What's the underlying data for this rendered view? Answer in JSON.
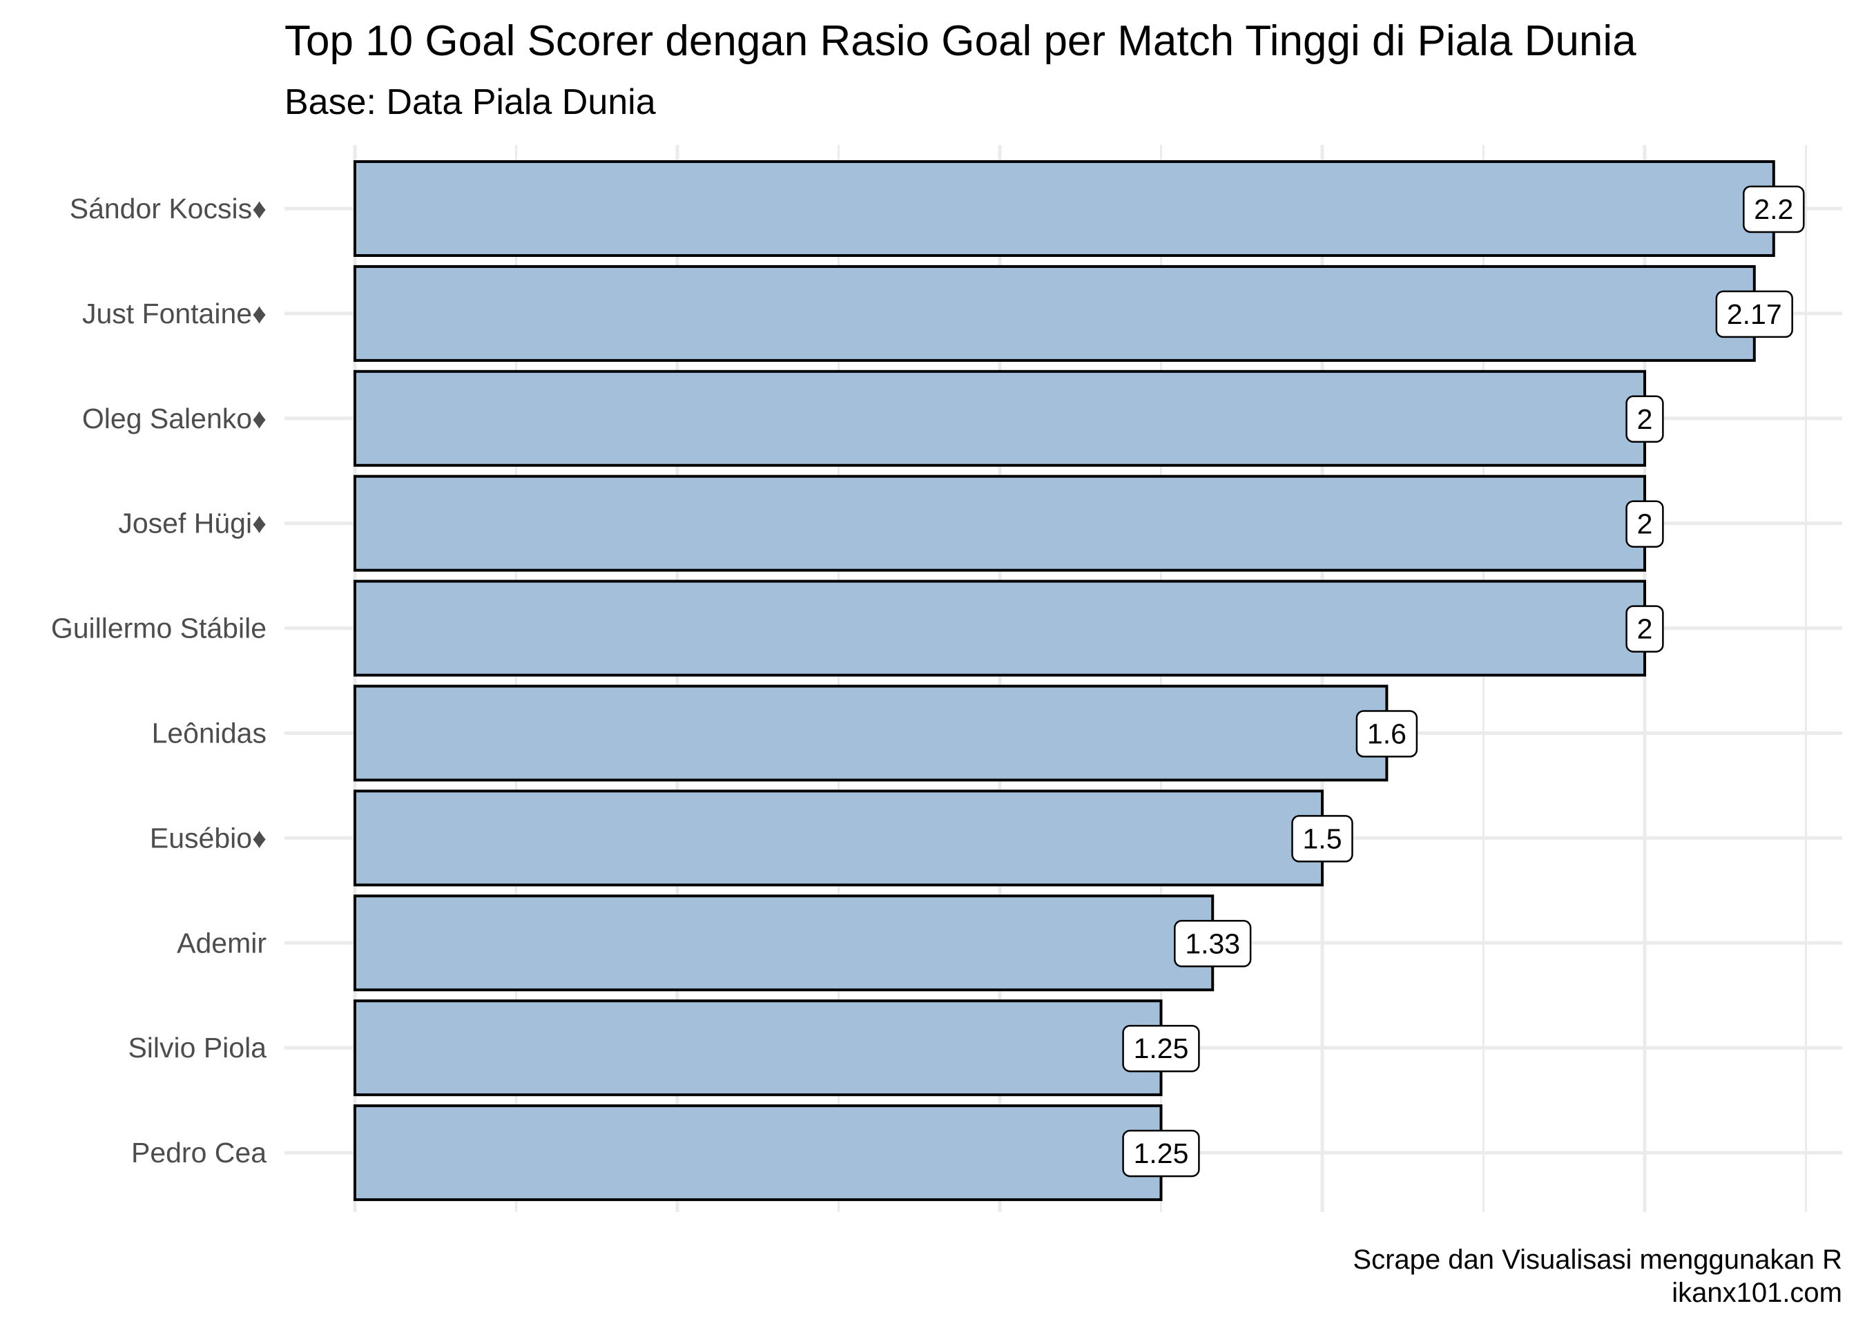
{
  "chart_data": {
    "type": "bar",
    "orientation": "horizontal",
    "title": "Top 10 Goal Scorer dengan Rasio Goal per Match Tinggi di Piala Dunia",
    "subtitle": "Base: Data Piala Dunia",
    "caption_lines": [
      "Scrape dan Visualisasi menggunakan R",
      "ikanx101.com"
    ],
    "categories": [
      "Sándor Kocsis♦",
      "Just Fontaine♦",
      "Oleg Salenko♦",
      "Josef Hügi♦",
      "Guillermo Stábile",
      "Leônidas",
      "Eusébio♦",
      "Ademir",
      "Silvio Piola",
      "Pedro Cea"
    ],
    "values": [
      2.2,
      2.17,
      2,
      2,
      2,
      1.6,
      1.5,
      1.33,
      1.25,
      1.25
    ],
    "data_labels": [
      "2.2",
      "2.17",
      "2",
      "2",
      "2",
      "1.6",
      "1.5",
      "1.33",
      "1.25",
      "1.25"
    ],
    "xlim": [
      0,
      2.3
    ],
    "x_tick_labels_shown": false,
    "grid": true,
    "bar_color": "#a3bfda",
    "bar_outline_color": "#000000",
    "grid_color": "#ebebeb"
  }
}
